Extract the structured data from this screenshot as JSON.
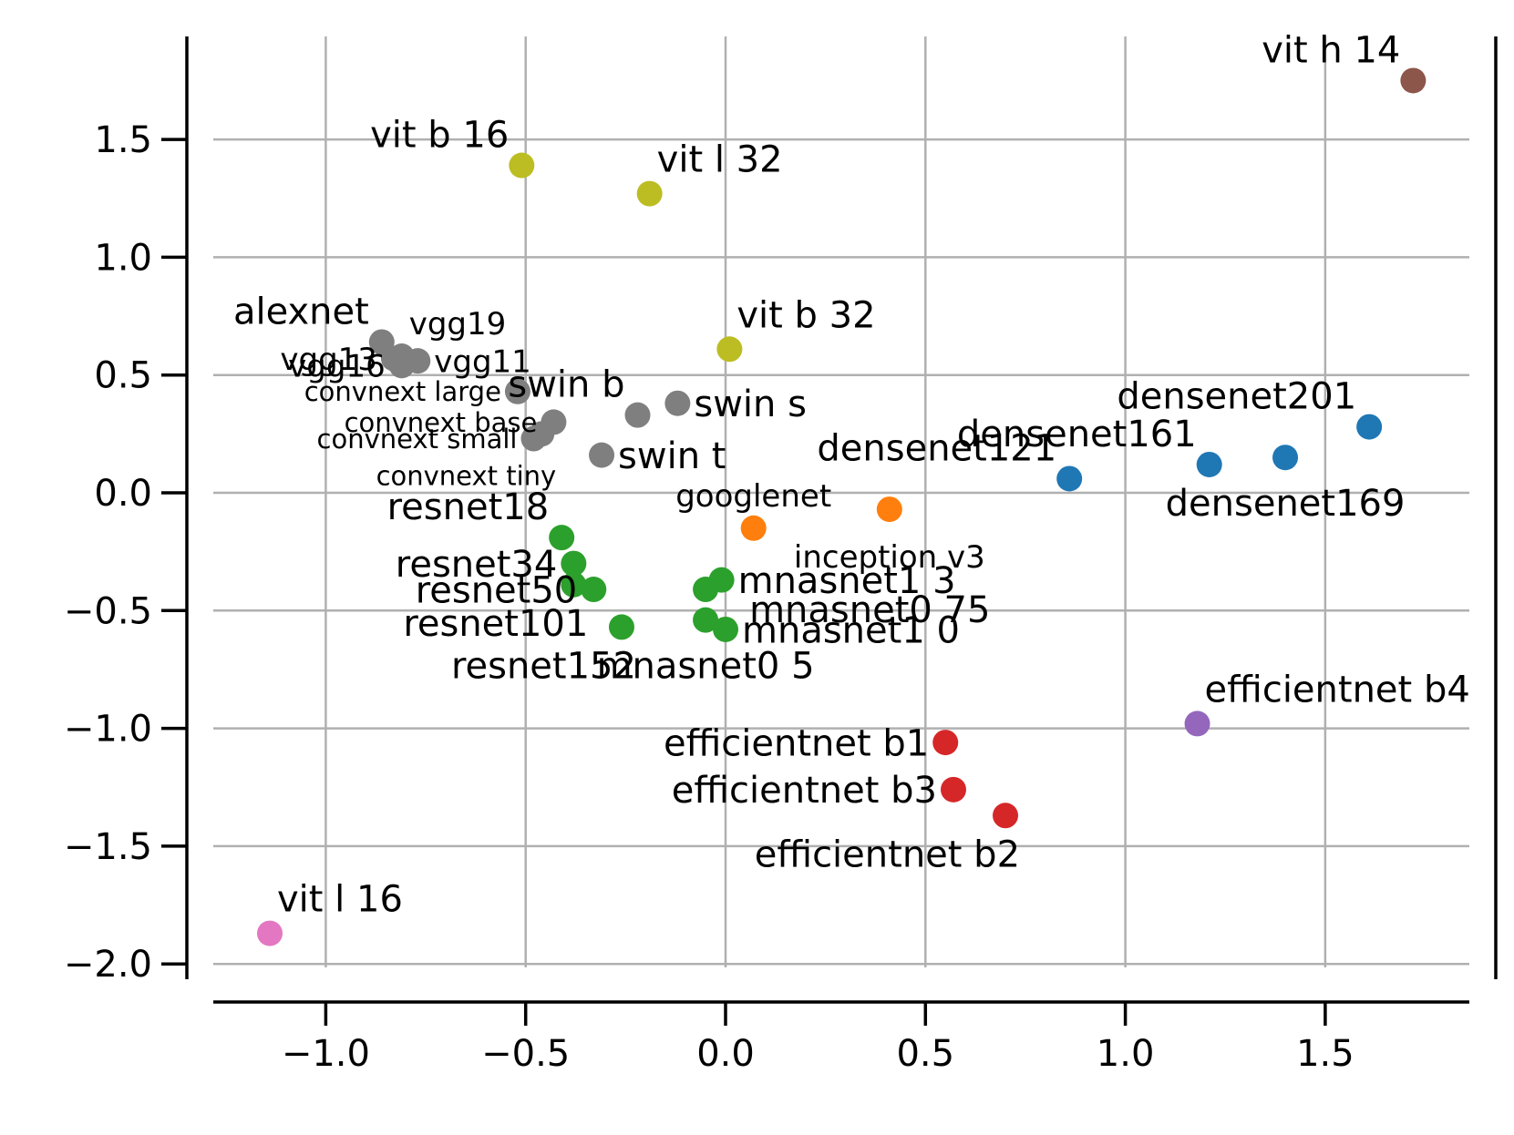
{
  "chart_data": {
    "type": "scatter",
    "title": "",
    "xlabel": "",
    "ylabel": "",
    "xlim": [
      -1.28,
      1.88
    ],
    "ylim": [
      -2.05,
      1.95
    ],
    "grid": true,
    "xticks": [
      -1.0,
      -0.5,
      0.0,
      0.5,
      1.0,
      1.5
    ],
    "yticks": [
      -2.0,
      -1.5,
      -1.0,
      -0.5,
      0.0,
      0.5,
      1.0,
      1.5
    ],
    "xtick_labels": [
      "−1.0",
      "−0.5",
      "0.0",
      "0.5",
      "1.0",
      "1.5"
    ],
    "ytick_labels": [
      "−2.0",
      "−1.5",
      "−1.0",
      "−0.5",
      "0.0",
      "0.5",
      "1.0",
      "1.5"
    ],
    "colors": {
      "blue": "#1f77b4",
      "orange": "#ff7f0e",
      "green": "#2ca02c",
      "red": "#d62728",
      "purple": "#9467bd",
      "brown": "#8c564b",
      "pink": "#e377c2",
      "gray": "#7f7f7f",
      "olive": "#bcbd22"
    },
    "points": [
      {
        "label": "vit h 14",
        "x": 1.72,
        "y": 1.75,
        "color": "brown",
        "size": "large",
        "pos": "above-left"
      },
      {
        "label": "vit b 16",
        "x": -0.51,
        "y": 1.39,
        "color": "olive",
        "size": "large",
        "pos": "above-left"
      },
      {
        "label": "vit l 32",
        "x": -0.19,
        "y": 1.27,
        "color": "olive",
        "size": "large",
        "pos": "above-right"
      },
      {
        "label": "vit b 32",
        "x": 0.01,
        "y": 0.61,
        "color": "olive",
        "size": "large",
        "pos": "above-right"
      },
      {
        "label": "vit l 16",
        "x": -1.14,
        "y": -1.87,
        "color": "pink",
        "size": "large",
        "pos": "above-right"
      },
      {
        "label": "alexnet",
        "x": -0.86,
        "y": 0.64,
        "color": "gray",
        "size": "large",
        "pos": "above-left"
      },
      {
        "label": "vgg19",
        "x": -0.81,
        "y": 0.58,
        "color": "gray",
        "size": "medium",
        "pos": "above-right"
      },
      {
        "label": "vgg13",
        "x": -0.83,
        "y": 0.57,
        "color": "gray",
        "size": "medium",
        "pos": "left"
      },
      {
        "label": "vgg11",
        "x": -0.77,
        "y": 0.56,
        "color": "gray",
        "size": "medium",
        "pos": "right"
      },
      {
        "label": "vgg16",
        "x": -0.81,
        "y": 0.54,
        "color": "gray",
        "size": "medium",
        "pos": "left"
      },
      {
        "label": "convnext large",
        "x": -0.52,
        "y": 0.43,
        "color": "gray",
        "size": "small",
        "pos": "left"
      },
      {
        "label": "convnext base",
        "x": -0.43,
        "y": 0.3,
        "color": "gray",
        "size": "small",
        "pos": "left"
      },
      {
        "label": "convnext small",
        "x": -0.48,
        "y": 0.23,
        "color": "gray",
        "size": "small",
        "pos": "left"
      },
      {
        "label": "convnext tiny",
        "x": -0.46,
        "y": 0.25,
        "color": "gray",
        "size": "small",
        "pos": "below-left"
      },
      {
        "label": "swin b",
        "x": -0.22,
        "y": 0.33,
        "color": "gray",
        "size": "large",
        "pos": "above-left"
      },
      {
        "label": "swin s",
        "x": -0.12,
        "y": 0.38,
        "color": "gray",
        "size": "large",
        "pos": "right"
      },
      {
        "label": "swin t",
        "x": -0.31,
        "y": 0.16,
        "color": "gray",
        "size": "large",
        "pos": "right"
      },
      {
        "label": "densenet121",
        "x": 0.86,
        "y": 0.06,
        "color": "blue",
        "size": "large",
        "pos": "above-left"
      },
      {
        "label": "densenet161",
        "x": 1.21,
        "y": 0.12,
        "color": "blue",
        "size": "large",
        "pos": "above-left"
      },
      {
        "label": "densenet169",
        "x": 1.4,
        "y": 0.15,
        "color": "blue",
        "size": "large",
        "pos": "below"
      },
      {
        "label": "densenet201",
        "x": 1.61,
        "y": 0.28,
        "color": "blue",
        "size": "large",
        "pos": "above-left"
      },
      {
        "label": "googlenet",
        "x": 0.07,
        "y": -0.15,
        "color": "orange",
        "size": "medium",
        "pos": "above"
      },
      {
        "label": "inception v3",
        "x": 0.41,
        "y": -0.07,
        "color": "orange",
        "size": "medium",
        "pos": "below"
      },
      {
        "label": "resnet18",
        "x": -0.41,
        "y": -0.19,
        "color": "green",
        "size": "large",
        "pos": "above-left"
      },
      {
        "label": "resnet34",
        "x": -0.38,
        "y": -0.3,
        "color": "green",
        "size": "large",
        "pos": "left"
      },
      {
        "label": "resnet50",
        "x": -0.33,
        "y": -0.41,
        "color": "green",
        "size": "large",
        "pos": "left"
      },
      {
        "label": "resnet101",
        "x": -0.38,
        "y": -0.39,
        "color": "green",
        "size": "large",
        "pos": "below-left"
      },
      {
        "label": "resnet152",
        "x": -0.26,
        "y": -0.57,
        "color": "green",
        "size": "large",
        "pos": "below-left"
      },
      {
        "label": "mnasnet1 3",
        "x": -0.01,
        "y": -0.37,
        "color": "green",
        "size": "large",
        "pos": "right"
      },
      {
        "label": "mnasnet0 75",
        "x": -0.05,
        "y": -0.41,
        "color": "green",
        "size": "large",
        "pos": "right-low"
      },
      {
        "label": "mnasnet1 0",
        "x": 0.0,
        "y": -0.58,
        "color": "green",
        "size": "large",
        "pos": "right"
      },
      {
        "label": "mnasnet0 5",
        "x": -0.05,
        "y": -0.54,
        "color": "green",
        "size": "large",
        "pos": "below"
      },
      {
        "label": "efficientnet b1",
        "x": 0.55,
        "y": -1.06,
        "color": "red",
        "size": "large",
        "pos": "left"
      },
      {
        "label": "efficientnet b3",
        "x": 0.57,
        "y": -1.26,
        "color": "red",
        "size": "large",
        "pos": "left"
      },
      {
        "label": "efficientnet b2",
        "x": 0.7,
        "y": -1.37,
        "color": "red",
        "size": "large",
        "pos": "below-left"
      },
      {
        "label": "efficientnet b4",
        "x": 1.18,
        "y": -0.98,
        "color": "purple",
        "size": "large",
        "pos": "above-right"
      }
    ]
  }
}
